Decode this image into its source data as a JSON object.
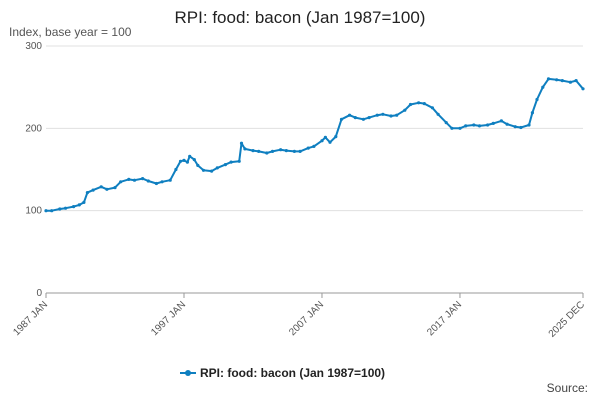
{
  "chart_data": {
    "type": "line",
    "title": "RPI: food: bacon (Jan 1987=100)",
    "subtitle": "Index, base year = 100",
    "source_label": "Source:",
    "ylim": [
      0,
      300
    ],
    "yticks": [
      0,
      100,
      200,
      300
    ],
    "xlim": [
      "1987-01",
      "2025-12"
    ],
    "xticks": [
      {
        "date": "1987-01",
        "label": "1987 JAN"
      },
      {
        "date": "1997-01",
        "label": "1997 JAN"
      },
      {
        "date": "2007-01",
        "label": "2007 JAN"
      },
      {
        "date": "2017-01",
        "label": "2017 JAN"
      },
      {
        "date": "2025-12",
        "label": "2025 DEC"
      }
    ],
    "grid": true,
    "legend": "bottom",
    "colors": {
      "series": "#0f7fc0",
      "grid": "#e0e0e0",
      "axis": "#999999"
    },
    "series": [
      {
        "name": "RPI: food: bacon (Jan 1987=100)",
        "points": [
          [
            "1987-01",
            100
          ],
          [
            "1987-06",
            100
          ],
          [
            "1988-01",
            102
          ],
          [
            "1988-06",
            103
          ],
          [
            "1989-01",
            105
          ],
          [
            "1989-06",
            107
          ],
          [
            "1989-10",
            110
          ],
          [
            "1990-01",
            122
          ],
          [
            "1990-06",
            125
          ],
          [
            "1991-01",
            129
          ],
          [
            "1991-06",
            126
          ],
          [
            "1992-01",
            128
          ],
          [
            "1992-06",
            135
          ],
          [
            "1993-01",
            138
          ],
          [
            "1993-06",
            137
          ],
          [
            "1994-01",
            139
          ],
          [
            "1994-06",
            136
          ],
          [
            "1995-01",
            133
          ],
          [
            "1995-06",
            135
          ],
          [
            "1996-01",
            137
          ],
          [
            "1996-06",
            150
          ],
          [
            "1996-10",
            160
          ],
          [
            "1997-01",
            161
          ],
          [
            "1997-04",
            159
          ],
          [
            "1997-06",
            166
          ],
          [
            "1997-10",
            162
          ],
          [
            "1998-01",
            155
          ],
          [
            "1998-06",
            149
          ],
          [
            "1999-01",
            148
          ],
          [
            "1999-06",
            152
          ],
          [
            "2000-01",
            156
          ],
          [
            "2000-06",
            159
          ],
          [
            "2001-01",
            160
          ],
          [
            "2001-03",
            182
          ],
          [
            "2001-06",
            175
          ],
          [
            "2002-01",
            173
          ],
          [
            "2002-06",
            172
          ],
          [
            "2003-01",
            170
          ],
          [
            "2003-06",
            172
          ],
          [
            "2004-01",
            174
          ],
          [
            "2004-06",
            173
          ],
          [
            "2005-01",
            172
          ],
          [
            "2005-06",
            172
          ],
          [
            "2006-01",
            176
          ],
          [
            "2006-06",
            178
          ],
          [
            "2007-01",
            185
          ],
          [
            "2007-04",
            189
          ],
          [
            "2007-08",
            183
          ],
          [
            "2008-01",
            190
          ],
          [
            "2008-06",
            211
          ],
          [
            "2009-01",
            216
          ],
          [
            "2009-06",
            213
          ],
          [
            "2010-01",
            211
          ],
          [
            "2010-06",
            213
          ],
          [
            "2011-01",
            216
          ],
          [
            "2011-06",
            217
          ],
          [
            "2012-01",
            215
          ],
          [
            "2012-06",
            216
          ],
          [
            "2013-01",
            222
          ],
          [
            "2013-06",
            229
          ],
          [
            "2014-01",
            231
          ],
          [
            "2014-06",
            230
          ],
          [
            "2015-01",
            225
          ],
          [
            "2015-06",
            217
          ],
          [
            "2016-01",
            207
          ],
          [
            "2016-06",
            200
          ],
          [
            "2017-01",
            200
          ],
          [
            "2017-06",
            203
          ],
          [
            "2018-01",
            204
          ],
          [
            "2018-06",
            203
          ],
          [
            "2019-01",
            204
          ],
          [
            "2019-06",
            206
          ],
          [
            "2020-01",
            209
          ],
          [
            "2020-06",
            205
          ],
          [
            "2021-01",
            202
          ],
          [
            "2021-06",
            201
          ],
          [
            "2022-01",
            204
          ],
          [
            "2022-04",
            219
          ],
          [
            "2022-08",
            235
          ],
          [
            "2023-01",
            250
          ],
          [
            "2023-06",
            260
          ],
          [
            "2024-01",
            259
          ],
          [
            "2024-06",
            258
          ],
          [
            "2025-01",
            256
          ],
          [
            "2025-06",
            258
          ],
          [
            "2025-12",
            248
          ]
        ]
      }
    ]
  }
}
